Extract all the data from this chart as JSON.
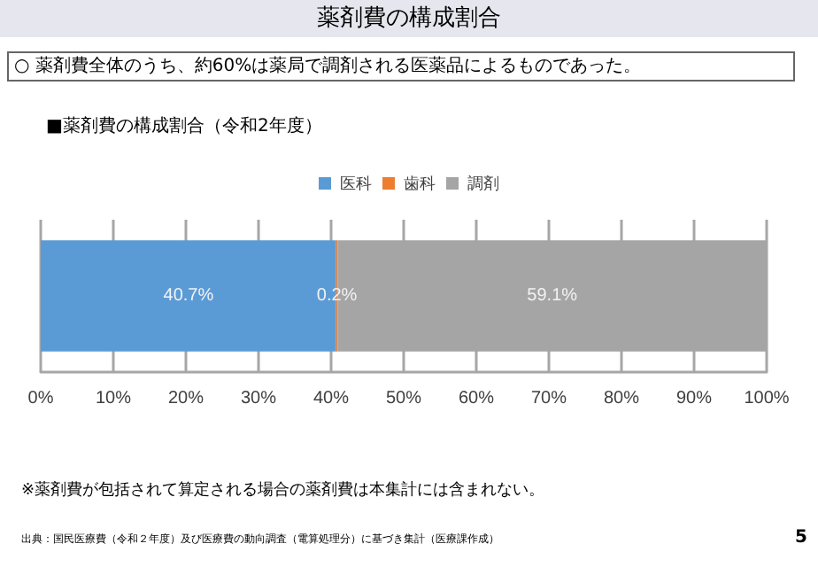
{
  "chart_data": {
    "type": "bar",
    "orientation": "horizontal",
    "stacked": true,
    "title": "薬剤費の構成割合",
    "subtitle": "○ 薬剤費全体のうち、約60%は薬局で調剤される医薬品によるものであった。",
    "annotations": [
      "■薬剤費の構成割合（令和2年度）",
      "※薬剤費が包括されて算定される場合の薬剤費は本集計には含まれない。",
      "出典：国民医療費（令和２年度）及び医療費の動向調査（電算処理分）に基づき集計（医療課作成）",
      "5"
    ],
    "categories": [
      null
    ],
    "series": [
      {
        "name": "医科",
        "color": "#5b9bd5",
        "values": [
          40.7
        ],
        "value_labels": [
          "40.7%"
        ]
      },
      {
        "name": "歯科",
        "color": "#ed7d31",
        "values": [
          0.2
        ],
        "value_labels": [
          "0.2%"
        ]
      },
      {
        "name": "調剤",
        "color": "#a5a5a5",
        "values": [
          59.1
        ],
        "value_labels": [
          "59.1%"
        ]
      }
    ],
    "xlim": [
      0,
      100
    ],
    "xticks": [
      {
        "value": 0,
        "label": "0%"
      },
      {
        "value": 10,
        "label": "10%"
      },
      {
        "value": 20,
        "label": "20%"
      },
      {
        "value": 30,
        "label": "30%"
      },
      {
        "value": 40,
        "label": "40%"
      },
      {
        "value": 50,
        "label": "50%"
      },
      {
        "value": 60,
        "label": "60%"
      },
      {
        "value": 70,
        "label": "70%"
      },
      {
        "value": 80,
        "label": "80%"
      },
      {
        "value": 90,
        "label": "90%"
      },
      {
        "value": 100,
        "label": "100%"
      }
    ],
    "grid": "x",
    "legend": "top"
  }
}
